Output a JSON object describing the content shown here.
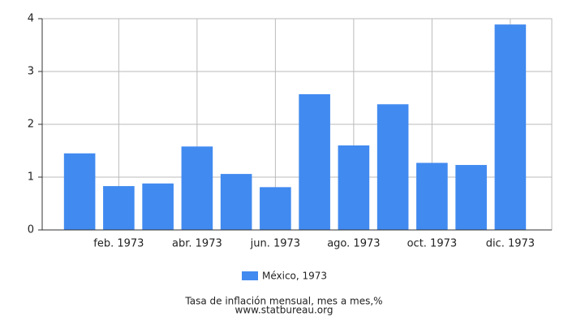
{
  "chart_data": {
    "type": "bar",
    "categories": [
      null,
      "feb. 1973",
      null,
      "abr. 1973",
      null,
      "jun. 1973",
      null,
      "ago. 1973",
      null,
      "oct. 1973",
      null,
      "dic. 1973"
    ],
    "series": [
      {
        "name": "México, 1973",
        "color": "#418af0",
        "values": [
          1.45,
          0.83,
          0.88,
          1.58,
          1.06,
          0.81,
          2.57,
          1.6,
          2.38,
          1.27,
          1.23,
          3.89
        ]
      }
    ],
    "ylim": [
      0,
      4
    ],
    "yticks": [
      0,
      1,
      2,
      3,
      4
    ],
    "grid": true,
    "xlabel": "Tasa de inflación mensual, mes a mes,%",
    "source": "www.statbureau.org"
  }
}
